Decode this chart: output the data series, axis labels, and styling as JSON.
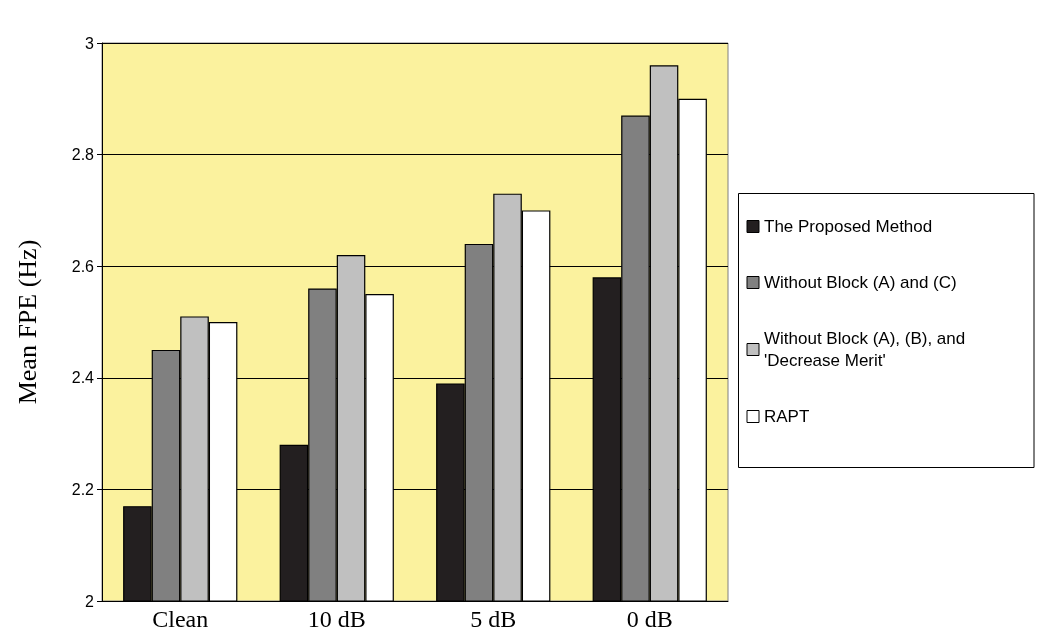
{
  "chart_data": {
    "type": "bar",
    "ylabel": "Mean FPE (Hz)",
    "categories": [
      "Clean",
      "10 dB",
      "5 dB",
      "0 dB"
    ],
    "series": [
      {
        "name": "The Proposed Method",
        "color": "#231f20",
        "values": [
          2.17,
          2.28,
          2.39,
          2.58
        ]
      },
      {
        "name": "Without Block (A) and (C)",
        "color": "#808080",
        "values": [
          2.45,
          2.56,
          2.64,
          2.87
        ]
      },
      {
        "name": "Without Block (A), (B), and 'Decrease Merit'",
        "color": "#c0c0c0",
        "values": [
          2.51,
          2.62,
          2.73,
          2.96
        ]
      },
      {
        "name": "RAPT",
        "color": "#ffffff",
        "values": [
          2.5,
          2.55,
          2.7,
          2.9
        ]
      }
    ],
    "ylim": [
      2,
      3
    ],
    "yticks": [
      2,
      2.2,
      2.4,
      2.6,
      2.8,
      3
    ],
    "grid": "y",
    "legend": "right"
  }
}
